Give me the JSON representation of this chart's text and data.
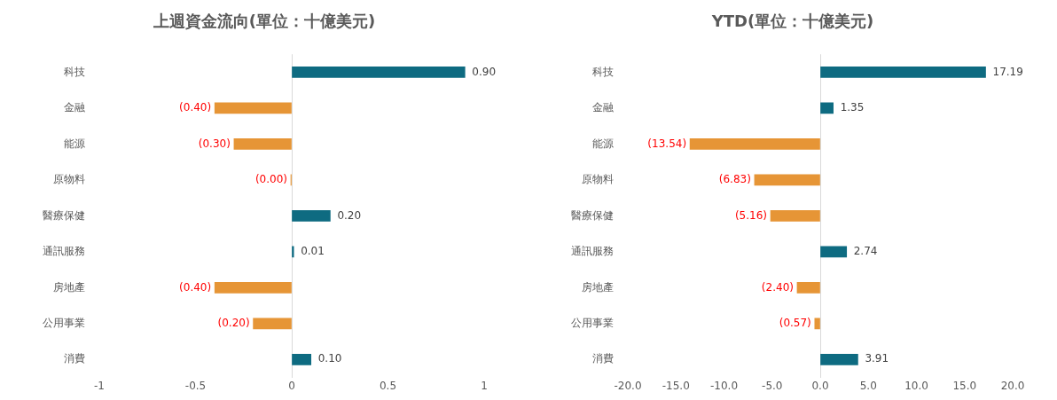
{
  "chart_data": [
    {
      "type": "bar",
      "orientation": "horizontal",
      "title": "上週資金流向(單位：十億美元)",
      "categories": [
        "科技",
        "金融",
        "能源",
        "原物料",
        "醫療保健",
        "通訊服務",
        "房地產",
        "公用事業",
        "消費"
      ],
      "values": [
        0.9,
        -0.4,
        -0.3,
        -0.004,
        0.2,
        0.01,
        -0.4,
        -0.2,
        0.1
      ],
      "value_labels": [
        "0.90",
        "(0.40)",
        "(0.30)",
        "(0.00)",
        "0.20",
        "0.01",
        "(0.40)",
        "(0.20)",
        "0.10"
      ],
      "colors": [
        "#0e6b81",
        "#e69536",
        "#e69536",
        "#e69536",
        "#0e6b81",
        "#0e6b81",
        "#e69536",
        "#e69536",
        "#0e6b81"
      ],
      "xlim": [
        -1,
        1
      ],
      "xticks": [
        -1,
        -0.5,
        0,
        0.5,
        1
      ]
    },
    {
      "type": "bar",
      "orientation": "horizontal",
      "title": "YTD(單位：十億美元)",
      "categories": [
        "科技",
        "金融",
        "能源",
        "原物料",
        "醫療保健",
        "通訊服務",
        "房地產",
        "公用事業",
        "消費"
      ],
      "values": [
        17.19,
        1.35,
        -13.54,
        -6.83,
        -5.16,
        2.74,
        -2.4,
        -0.57,
        3.91
      ],
      "value_labels": [
        "17.19",
        "1.35",
        "(13.54)",
        "(6.83)",
        "(5.16)",
        "2.74",
        "(2.40)",
        "(0.57)",
        "3.91"
      ],
      "colors": [
        "#0e6b81",
        "#0e6b81",
        "#e69536",
        "#e69536",
        "#e69536",
        "#0e6b81",
        "#e69536",
        "#e69536",
        "#0e6b81"
      ],
      "xlim": [
        -20,
        20
      ],
      "xticks": [
        {
          "value": -20,
          "label": "-20.0"
        },
        {
          "value": -15,
          "label": "-15.0"
        },
        {
          "value": -10,
          "label": "-10.0"
        },
        {
          "value": -5,
          "label": "-5.0"
        },
        {
          "value": 0,
          "label": "0.0"
        },
        {
          "value": 5,
          "label": "5.0"
        },
        {
          "value": 10,
          "label": "10.0"
        },
        {
          "value": 15,
          "label": "15.0"
        },
        {
          "value": 20,
          "label": "20.0"
        }
      ]
    }
  ]
}
